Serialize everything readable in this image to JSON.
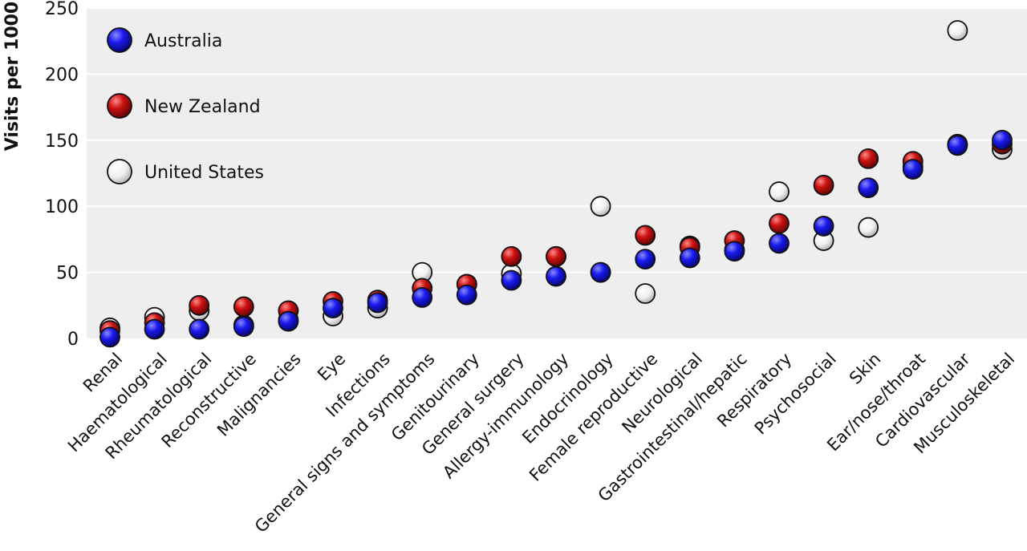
{
  "chart_data": {
    "type": "scatter",
    "title": "",
    "xlabel": "",
    "ylabel": "Visits per 1000",
    "ylim": [
      0,
      250
    ],
    "yticks": [
      0,
      50,
      100,
      150,
      200,
      250
    ],
    "grid": true,
    "legend_position": "top-left",
    "categories": [
      "Renal",
      "Haematological",
      "Rheumatological",
      "Reconstructive",
      "Malignancies",
      "Eye",
      "Infections",
      "General signs and symptoms",
      "Genitourinary",
      "General surgery",
      "Allergy-immunology",
      "Endocrinology",
      "Female reproductive",
      "Neurological",
      "Gastrointestinal/hepatic",
      "Respiratory",
      "Psychosocial",
      "Skin",
      "Ear/nose/throat",
      "Cardiovascular",
      "Musculoskeletal"
    ],
    "series": [
      {
        "name": "United States",
        "color": "#f2f2f2",
        "values": [
          8,
          16,
          21,
          10,
          14,
          17,
          23,
          50,
          41,
          49,
          62,
          100,
          34,
          70,
          67,
          111,
          74,
          84,
          130,
          233,
          143
        ]
      },
      {
        "name": "New Zealand",
        "color": "#cc1111",
        "values": [
          6,
          12,
          25,
          24,
          21,
          28,
          29,
          38,
          41,
          62,
          62,
          50,
          78,
          69,
          74,
          87,
          116,
          136,
          134,
          147,
          147
        ]
      },
      {
        "name": "Australia",
        "color": "#1a1aee",
        "values": [
          1,
          7,
          7,
          9,
          13,
          23,
          27,
          31,
          33,
          44,
          47,
          50,
          60,
          61,
          66,
          72,
          85,
          114,
          128,
          146,
          150
        ]
      }
    ]
  }
}
